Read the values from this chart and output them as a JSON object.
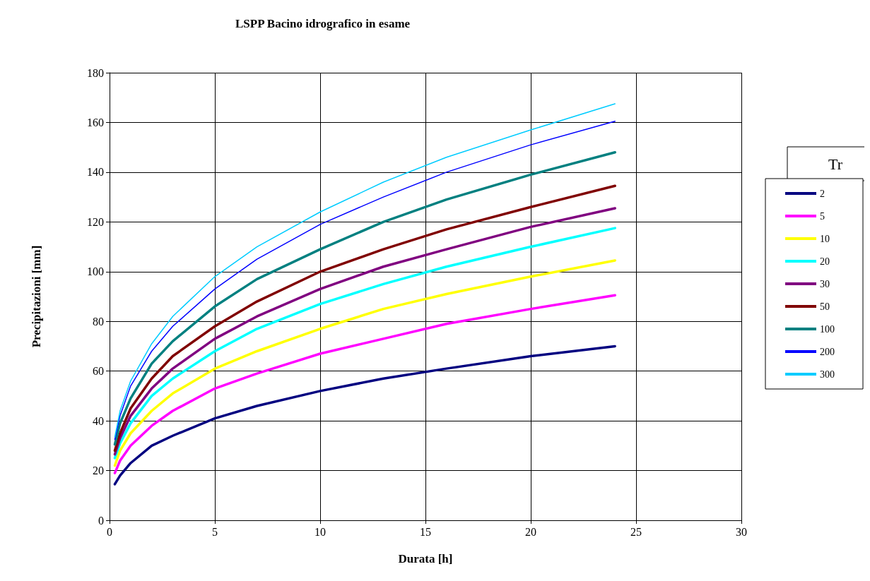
{
  "chart_data": {
    "type": "line",
    "title": "LSPP Bacino idrografico in esame",
    "xlabel": "Durata [h]",
    "ylabel": "Precipitazioni [mm]",
    "legend_title": "Tr",
    "x": [
      0.25,
      0.5,
      1,
      2,
      3,
      5,
      7,
      10,
      13,
      16,
      20,
      24
    ],
    "series": [
      {
        "name": "2",
        "color": "#000080",
        "values": [
          14.5,
          18,
          23,
          30,
          34,
          41,
          46,
          52,
          57,
          61,
          66,
          70
        ]
      },
      {
        "name": "5",
        "color": "#ff00ff",
        "values": [
          19,
          24,
          30,
          38,
          44,
          53,
          59,
          67,
          73,
          79,
          85,
          90.5
        ]
      },
      {
        "name": "10",
        "color": "#ffff00",
        "values": [
          22,
          28,
          35,
          44,
          51,
          61,
          68,
          77,
          85,
          91,
          98,
          104.5
        ]
      },
      {
        "name": "20",
        "color": "#00ffff",
        "values": [
          25,
          31,
          39,
          50,
          57,
          68,
          77,
          87,
          95,
          102,
          110,
          117.5
        ]
      },
      {
        "name": "30",
        "color": "#800080",
        "values": [
          26.5,
          33,
          42,
          53,
          61,
          73,
          82,
          93,
          102,
          109,
          118,
          125.5
        ]
      },
      {
        "name": "50",
        "color": "#800000",
        "values": [
          28,
          35,
          45,
          57,
          66,
          78,
          88,
          100,
          109,
          117,
          126,
          134.5
        ]
      },
      {
        "name": "100",
        "color": "#008080",
        "values": [
          30.5,
          39,
          49,
          63,
          72,
          86,
          97,
          109,
          120,
          129,
          139,
          148
        ]
      },
      {
        "name": "200",
        "color": "#0000ff",
        "values": [
          32.5,
          42,
          54,
          68,
          78,
          93,
          105,
          119,
          130,
          140,
          151,
          160.5
        ]
      },
      {
        "name": "300",
        "color": "#00ccff",
        "values": [
          33.5,
          44,
          56,
          71,
          82,
          98,
          110,
          124,
          136,
          146,
          157,
          167.5
        ]
      }
    ],
    "xlim": [
      0,
      30
    ],
    "xticks": [
      0,
      5,
      10,
      15,
      20,
      25,
      30
    ],
    "ylim": [
      0,
      180
    ],
    "yticks": [
      0,
      20,
      40,
      60,
      80,
      100,
      120,
      140,
      160,
      180
    ],
    "grid": true,
    "legend": "right",
    "marker": "none",
    "line_style": "solid"
  }
}
